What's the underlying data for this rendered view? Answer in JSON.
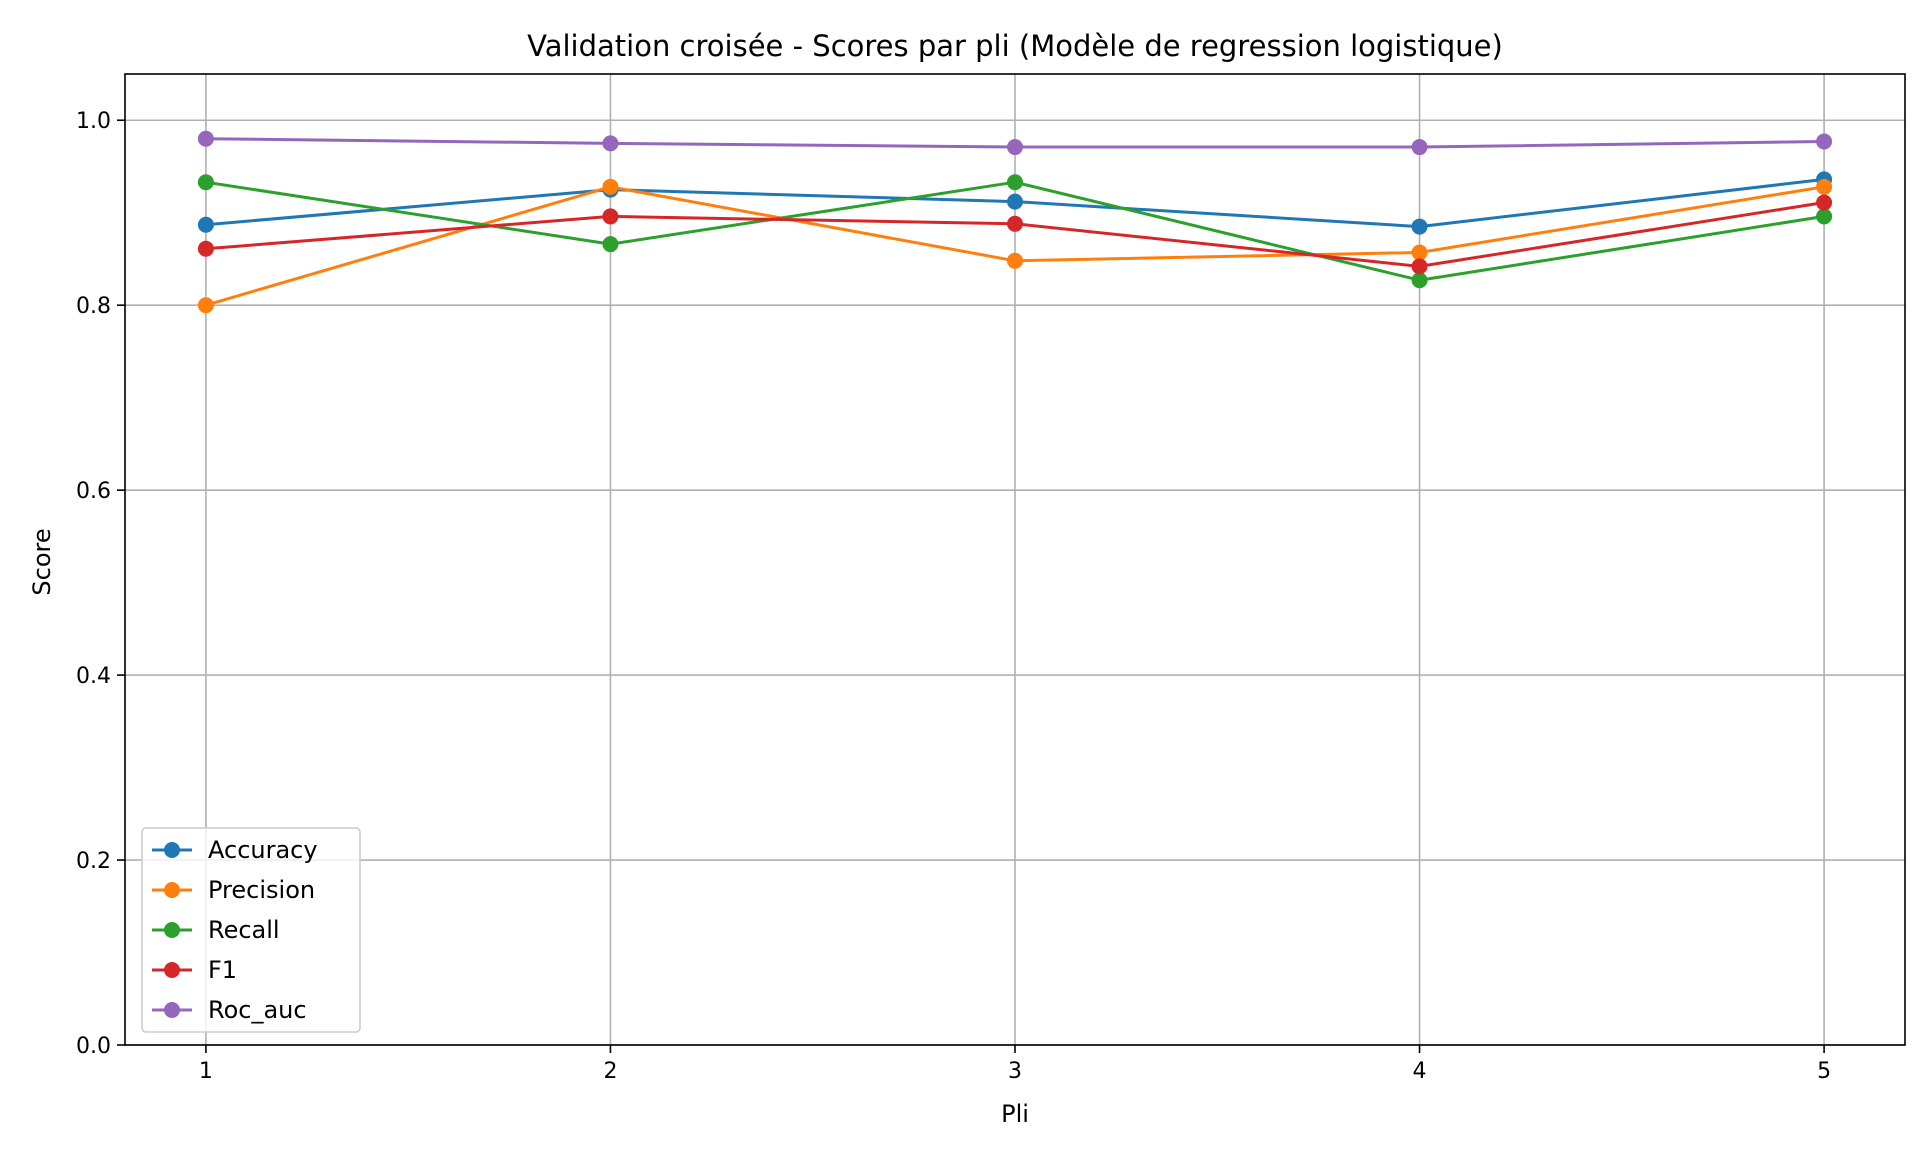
{
  "chart_data": {
    "type": "line",
    "title": "Validation croisée - Scores par pli (Modèle de regression logistique)",
    "xlabel": "Pli",
    "ylabel": "Score",
    "x": [
      1,
      2,
      3,
      4,
      5
    ],
    "xlim": [
      0.8,
      5.2
    ],
    "ylim": [
      0.0,
      1.05
    ],
    "xticks": [
      "1",
      "2",
      "3",
      "4",
      "5"
    ],
    "yticks": [
      "0.0",
      "0.2",
      "0.4",
      "0.6",
      "0.8",
      "1.0"
    ],
    "grid": true,
    "legend_position": "lower-left",
    "series": [
      {
        "name": "Accuracy",
        "color": "#1f77b4",
        "values": [
          0.887,
          0.925,
          0.912,
          0.885,
          0.936
        ]
      },
      {
        "name": "Precision",
        "color": "#ff7f0e",
        "values": [
          0.8,
          0.928,
          0.848,
          0.857,
          0.928
        ]
      },
      {
        "name": "Recall",
        "color": "#2ca02c",
        "values": [
          0.933,
          0.866,
          0.933,
          0.827,
          0.896
        ]
      },
      {
        "name": "F1",
        "color": "#d62728",
        "values": [
          0.861,
          0.896,
          0.888,
          0.842,
          0.911
        ]
      },
      {
        "name": "Roc_auc",
        "color": "#9467bd",
        "values": [
          0.98,
          0.975,
          0.971,
          0.971,
          0.977
        ]
      }
    ]
  }
}
